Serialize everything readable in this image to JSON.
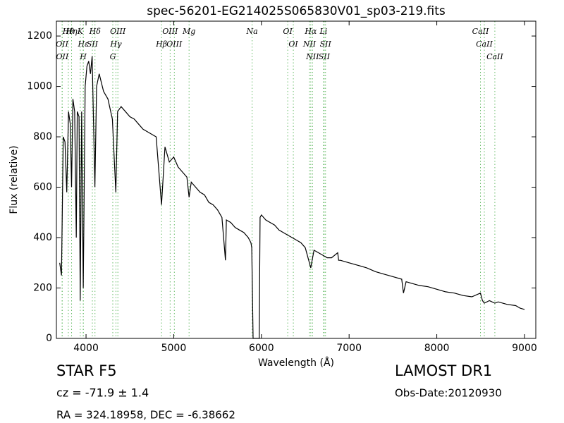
{
  "chart_data": {
    "type": "line",
    "title": "spec-56201-EG214025S065830V01_sp03-219.fits",
    "x_label": "Wavelength (Å)",
    "y_label": "Flux (relative)",
    "xlim": [
      3662,
      9129
    ],
    "ylim": [
      0,
      1259
    ],
    "xticks": [
      4000,
      5000,
      6000,
      7000,
      8000,
      9000
    ],
    "yticks": [
      0,
      200,
      400,
      600,
      800,
      1000,
      1200
    ],
    "series": [
      {
        "name": "spectrum",
        "color": "#000000",
        "x": [
          3700,
          3720,
          3740,
          3760,
          3780,
          3800,
          3820,
          3835,
          3850,
          3870,
          3889,
          3900,
          3920,
          3934,
          3950,
          3968,
          3990,
          4010,
          4030,
          4050,
          4070,
          4101,
          4120,
          4150,
          4200,
          4250,
          4300,
          4340,
          4360,
          4400,
          4450,
          4500,
          4550,
          4600,
          4650,
          4700,
          4750,
          4800,
          4861,
          4900,
          4950,
          5000,
          5050,
          5100,
          5150,
          5175,
          5200,
          5250,
          5300,
          5350,
          5400,
          5450,
          5500,
          5550,
          5590,
          5600,
          5650,
          5700,
          5750,
          5800,
          5850,
          5880,
          5890,
          5905,
          5975,
          5985,
          6000,
          6050,
          6100,
          6150,
          6200,
          6250,
          6300,
          6350,
          6400,
          6450,
          6500,
          6563,
          6600,
          6650,
          6700,
          6750,
          6800,
          6870,
          6880,
          6900,
          7000,
          7100,
          7200,
          7300,
          7400,
          7500,
          7600,
          7620,
          7650,
          7700,
          7800,
          7900,
          8000,
          8100,
          8200,
          8300,
          8400,
          8498,
          8520,
          8542,
          8600,
          8662,
          8700,
          8800,
          8900,
          8950,
          9000
        ],
        "values": [
          300,
          250,
          800,
          780,
          580,
          900,
          850,
          600,
          950,
          900,
          400,
          900,
          880,
          150,
          900,
          200,
          1000,
          1080,
          1100,
          1050,
          1120,
          600,
          1000,
          1050,
          980,
          950,
          870,
          580,
          900,
          920,
          900,
          880,
          870,
          850,
          830,
          820,
          810,
          800,
          530,
          760,
          700,
          720,
          680,
          660,
          640,
          560,
          620,
          600,
          580,
          570,
          540,
          530,
          510,
          480,
          310,
          470,
          460,
          440,
          430,
          420,
          400,
          380,
          360,
          0,
          0,
          480,
          490,
          470,
          460,
          450,
          430,
          420,
          410,
          400,
          390,
          380,
          360,
          280,
          350,
          340,
          330,
          320,
          320,
          340,
          310,
          310,
          300,
          290,
          280,
          265,
          255,
          245,
          235,
          180,
          225,
          220,
          210,
          205,
          195,
          185,
          180,
          170,
          165,
          180,
          150,
          140,
          150,
          140,
          145,
          135,
          130,
          120,
          115
        ]
      }
    ],
    "spectral_lines": {
      "color": "#66bb66",
      "x": [
        3798,
        3727,
        3729,
        3835,
        3934,
        3970,
        3968,
        4072,
        4102,
        4363,
        4341,
        4305,
        4959,
        5007,
        4861,
        5175,
        5894,
        6300,
        6364,
        6563,
        6548,
        6583,
        6708,
        6716,
        6731,
        8498,
        8542,
        8662
      ],
      "labels": [
        "Hθ",
        "OII",
        "OII",
        "Hη",
        "K",
        "Hε",
        "H",
        "SII",
        "Hδ",
        "OIII",
        "Hγ",
        "G",
        "OIII",
        "OIII",
        "Hβ",
        "Mg",
        "Na",
        "OI",
        "OI",
        "Hα",
        "NII",
        "NII",
        "Li",
        "SII",
        "SII",
        "CaII",
        "CaII",
        "CaII"
      ]
    },
    "info": {
      "class": "STAR   F5",
      "cz": "cz = -71.9 ± 1.4",
      "coords": "RA = 324.18958, DEC = -6.38662",
      "survey": "LAMOST DR1",
      "date": "Obs-Date:20120930"
    }
  }
}
